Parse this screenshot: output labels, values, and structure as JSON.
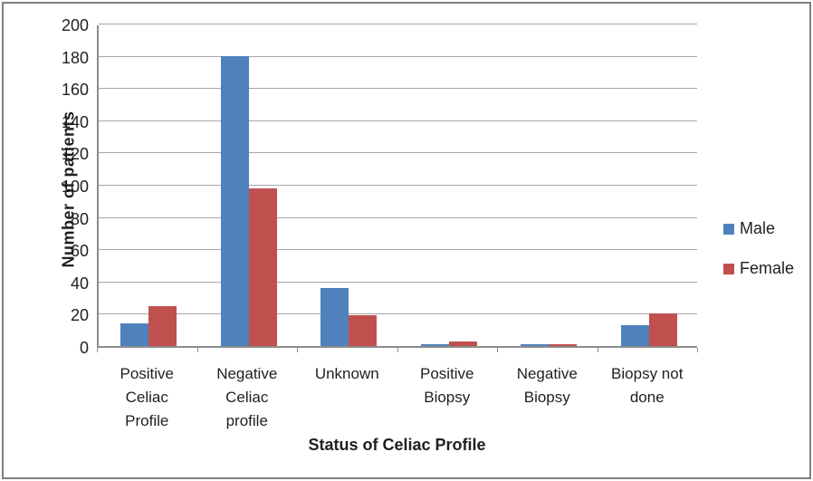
{
  "chart_data": {
    "type": "bar",
    "title": "",
    "xlabel": "Status of Celiac Profile",
    "ylabel": "Number of patients",
    "categories": [
      "Positive\nCeliac\nProfile",
      "Negative\nCeliac\nprofile",
      "Unknown",
      "Positive\nBiopsy",
      "Negative\nBiopsy",
      "Biopsy not\ndone"
    ],
    "series": [
      {
        "name": "Male",
        "color": "#4F81BD",
        "values": [
          14,
          180,
          36,
          1,
          1,
          13
        ]
      },
      {
        "name": "Female",
        "color": "#C0504D",
        "values": [
          25,
          98,
          19,
          3,
          1,
          20
        ]
      }
    ],
    "ylim": [
      0,
      200
    ],
    "ytick_step": 20,
    "yticks": [
      0,
      20,
      40,
      60,
      80,
      100,
      120,
      140,
      160,
      180,
      200
    ],
    "grid": true,
    "legend_position": "right",
    "colors": {
      "gridline": "#A6A6A6",
      "axis": "#8C8C8C",
      "text": "#1F1F1F",
      "frame_border": "#7F7F7F"
    }
  }
}
